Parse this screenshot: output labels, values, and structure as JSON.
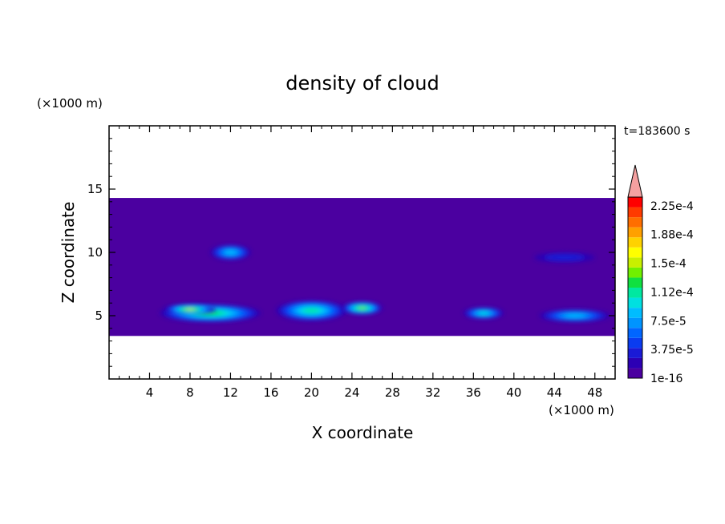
{
  "chart_data": {
    "type": "heatmap",
    "title": "density of cloud",
    "time_label": "t=183600 s",
    "xlabel": "X coordinate",
    "ylabel": "Z coordinate",
    "x_unit": "(×1000 m)",
    "y_unit": "(×1000 m)",
    "xlim": [
      0,
      50
    ],
    "ylim": [
      0,
      20
    ],
    "x_ticks": [
      4,
      8,
      12,
      16,
      20,
      24,
      28,
      32,
      36,
      40,
      44,
      48
    ],
    "y_ticks": [
      5,
      10,
      15
    ],
    "colorbar": {
      "labels": [
        "1e-16",
        "3.75e-5",
        "7.5e-5",
        "1.12e-4",
        "1.5e-4",
        "1.88e-4",
        "2.25e-4"
      ],
      "colors": [
        "#4b00a0",
        "#2c00b4",
        "#1a1ad6",
        "#0a3cf0",
        "#0066ff",
        "#0094ff",
        "#00bcff",
        "#00e0e0",
        "#00e8a0",
        "#10e040",
        "#70f000",
        "#c8f000",
        "#ffff00",
        "#ffd200",
        "#ffa000",
        "#ff6e00",
        "#ff3a00",
        "#ff0000"
      ],
      "extend_color": "#f4a0a0"
    },
    "field": {
      "cloud_top_km": 14.3,
      "cloud_base_km": 3.4,
      "background_color": "#4b00a0",
      "features": [
        {
          "x": 10,
          "z": 5.2,
          "w": 10,
          "h": 1.4,
          "level": 9
        },
        {
          "x": 8,
          "z": 5.5,
          "w": 5,
          "h": 0.8,
          "level": 11
        },
        {
          "x": 20,
          "z": 5.4,
          "w": 7,
          "h": 1.6,
          "level": 8
        },
        {
          "x": 25,
          "z": 5.6,
          "w": 4,
          "h": 1.0,
          "level": 10
        },
        {
          "x": 37,
          "z": 5.2,
          "w": 4,
          "h": 0.9,
          "level": 7
        },
        {
          "x": 46,
          "z": 5.0,
          "w": 7,
          "h": 1.0,
          "level": 6
        },
        {
          "x": 12,
          "z": 10.0,
          "w": 4,
          "h": 1.2,
          "level": 6
        },
        {
          "x": 45,
          "z": 9.6,
          "w": 6,
          "h": 0.8,
          "level": 2
        }
      ]
    }
  }
}
